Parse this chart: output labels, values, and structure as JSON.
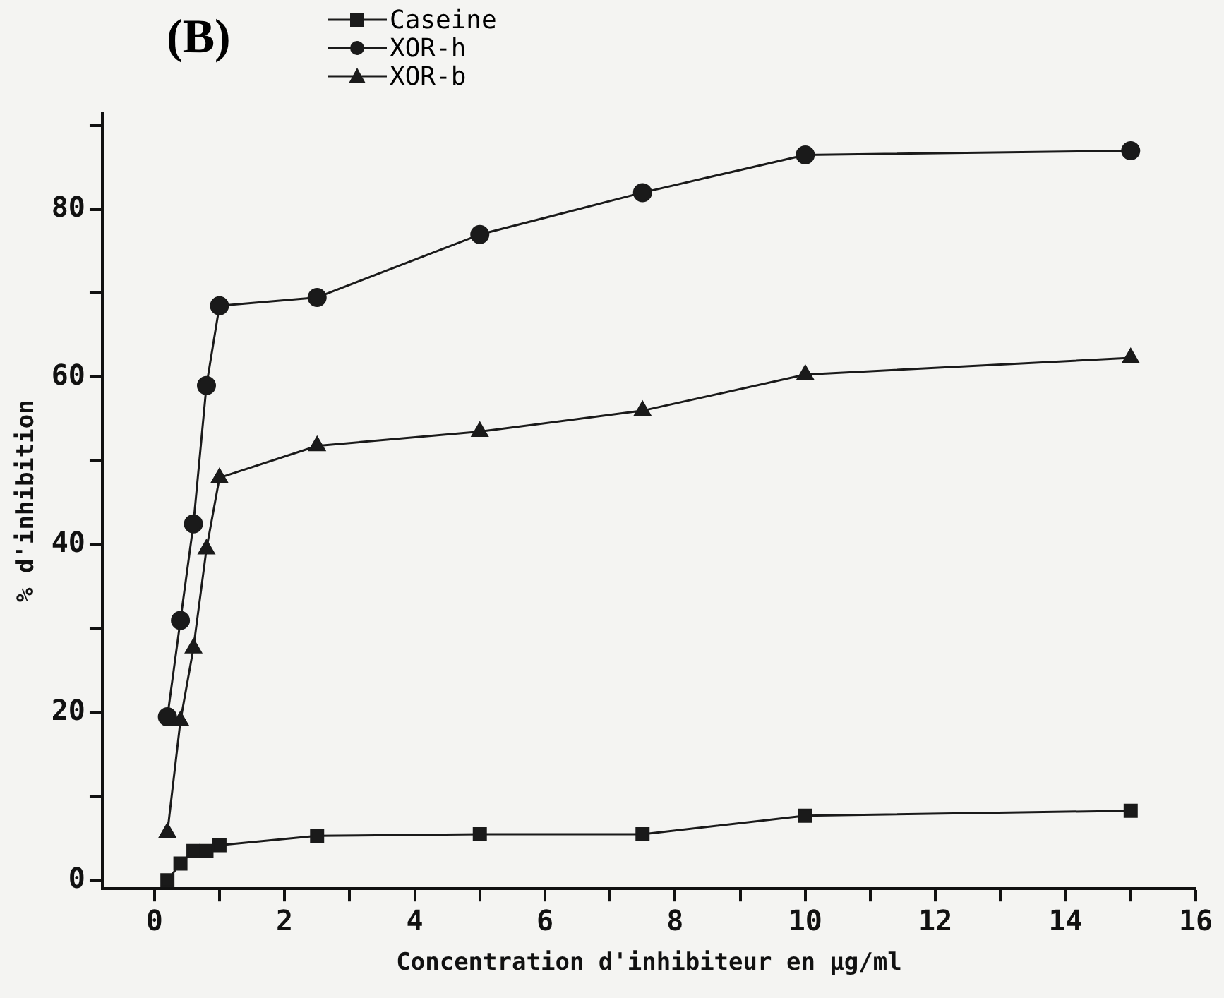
{
  "chart_data": {
    "type": "line",
    "title": "(B)",
    "xlabel": "Concentration d'inhibiteur en µg/ml",
    "ylabel": "% d'inhibition",
    "x": [
      0.2,
      0.4,
      0.6,
      0.8,
      1.0,
      2.5,
      5,
      7.5,
      10,
      15
    ],
    "series": [
      {
        "name": "Caseine",
        "color": "#1a1a1a",
        "marker": "square",
        "values": [
          0,
          2,
          3.5,
          3.5,
          4.2,
          5.3,
          5.5,
          5.5,
          7.7,
          8.3
        ]
      },
      {
        "name": "XOR-h",
        "color": "#1a1a1a",
        "marker": "circle",
        "values": [
          19.5,
          31,
          42.5,
          59,
          68.5,
          69.5,
          77,
          82,
          86.5,
          87
        ]
      },
      {
        "name": "XOR-b",
        "color": "#1a1a1a",
        "marker": "triangle",
        "values": [
          5.7,
          19,
          27.7,
          39.5,
          48,
          51.8,
          53.5,
          56,
          60.3,
          62.3
        ]
      }
    ],
    "xlim": [
      -0.8,
      16
    ],
    "xticks": [
      0,
      {
        "value": 1,
        "label": null
      },
      2,
      {
        "value": 3,
        "label": null
      },
      4,
      {
        "value": 5,
        "label": null
      },
      6,
      {
        "value": 7,
        "label": null
      },
      8,
      {
        "value": 9,
        "label": null
      },
      10,
      {
        "value": 11,
        "label": null
      },
      12,
      {
        "value": 13,
        "label": null
      },
      14,
      {
        "value": 15,
        "label": null
      },
      16
    ],
    "ylim": [
      -1,
      91.5
    ],
    "yticks": [
      0,
      {
        "value": 10,
        "label": null
      },
      20,
      {
        "value": 30,
        "label": null
      },
      40,
      {
        "value": 50,
        "label": null
      },
      60,
      {
        "value": 70,
        "label": null
      },
      80,
      {
        "value": 90,
        "label": null
      }
    ],
    "grid": false,
    "legend": "top left",
    "line_style": "solid"
  }
}
